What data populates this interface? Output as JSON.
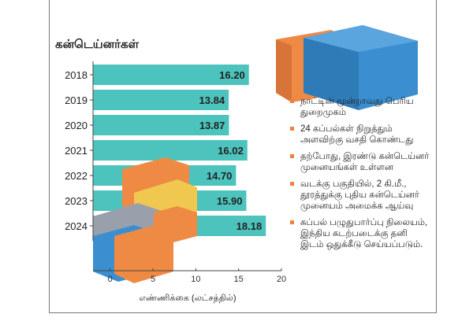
{
  "chart_data": {
    "type": "bar",
    "orientation": "horizontal",
    "title": "கன்டெய்னர்கள்",
    "categories": [
      "2018",
      "2019",
      "2020",
      "2021",
      "2022",
      "2023",
      "2024"
    ],
    "values": [
      16.2,
      13.84,
      13.87,
      16.02,
      14.7,
      15.9,
      18.18
    ],
    "value_labels": [
      "16.20",
      "13.84",
      "13.87",
      "16.02",
      "14.70",
      "15.90",
      "18.18"
    ],
    "xlabel": "எண்ணிக்கை (லட்சத்தில்)",
    "ylabel": "",
    "xlim": [
      -2,
      20
    ],
    "xticks": [
      0,
      5,
      10,
      15,
      20
    ],
    "xtick_labels": [
      "0",
      "5",
      "10",
      "15",
      "20"
    ],
    "grid": false,
    "colors": {
      "bar": "#4dc3bd",
      "bullet": "#f08040",
      "container_orange": "#ef8a45",
      "container_blue": "#3b8fd0",
      "container_yellow": "#f0c850",
      "container_gray": "#9aa0ab"
    }
  },
  "notes": [
    "நாட்டின் மூன்றாவது பெரிய துறைமுகம்",
    "24 கப்பல்கள் நிறுத்தும் அளவிற்கு வசதி கொண்டது",
    "தற்போது, இரண்டு கன்டெய்னர் முனையங்கள் உள்ளன",
    "வடக்கு பகுதியில், 2 கி.மீ., தூரத்துக்கு புதிய கன்டெய்னர் முனையம் அமைக்க ஆய்வு",
    "கப்பல் பழுதுபார்ப்பு நிலையம், இந்திய கடற்படைக்கு தனி இடம் ஒதுக்கீடு செய்யப்படும்."
  ]
}
